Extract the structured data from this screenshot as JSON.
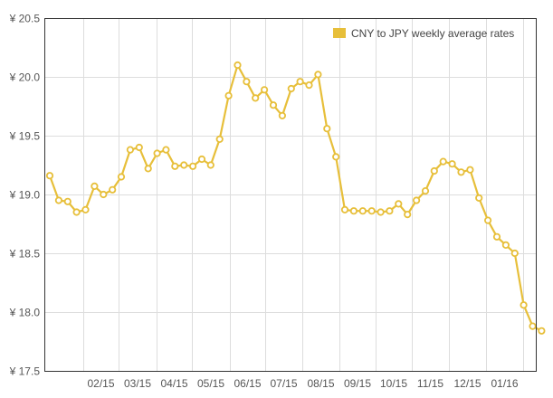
{
  "chart_data": {
    "type": "line",
    "title": "",
    "xlabel": "",
    "ylabel": "",
    "ylim": [
      17.5,
      20.5
    ],
    "y_ticks": [
      17.5,
      18.0,
      18.5,
      19.0,
      19.5,
      20.0,
      20.5
    ],
    "y_tick_labels": [
      "¥ 17.5",
      "¥ 18.0",
      "¥ 18.5",
      "¥ 19.0",
      "¥ 19.5",
      "¥ 20.0",
      "¥ 20.5"
    ],
    "x_tick_labels": [
      "02/15",
      "03/15",
      "04/15",
      "05/15",
      "06/15",
      "07/15",
      "08/15",
      "09/15",
      "10/15",
      "11/15",
      "12/15",
      "01/16"
    ],
    "grid": true,
    "legend_position": "top-right",
    "series": [
      {
        "name": "CNY to JPY weekly average rates",
        "color": "#e7bf3a",
        "values": [
          19.16,
          18.95,
          18.94,
          18.85,
          18.87,
          19.07,
          19.0,
          19.04,
          19.15,
          19.38,
          19.4,
          19.22,
          19.35,
          19.38,
          19.24,
          19.25,
          19.24,
          19.3,
          19.25,
          19.47,
          19.84,
          20.1,
          19.96,
          19.82,
          19.89,
          19.76,
          19.67,
          19.9,
          19.96,
          19.93,
          20.02,
          19.56,
          19.32,
          18.87,
          18.86,
          18.86,
          18.86,
          18.85,
          18.86,
          18.92,
          18.83,
          18.95,
          19.03,
          19.2,
          19.28,
          19.26,
          19.19,
          19.21,
          18.97,
          18.78,
          18.64,
          18.57,
          18.5,
          18.06,
          17.88,
          17.84
        ]
      }
    ]
  },
  "legend": {
    "swatch_color": "#e7bf3a"
  },
  "colors": {
    "line": "#e7bf3a",
    "marker_fill": "#ffffff",
    "grid": "#dddddd",
    "axis": "#333333"
  }
}
